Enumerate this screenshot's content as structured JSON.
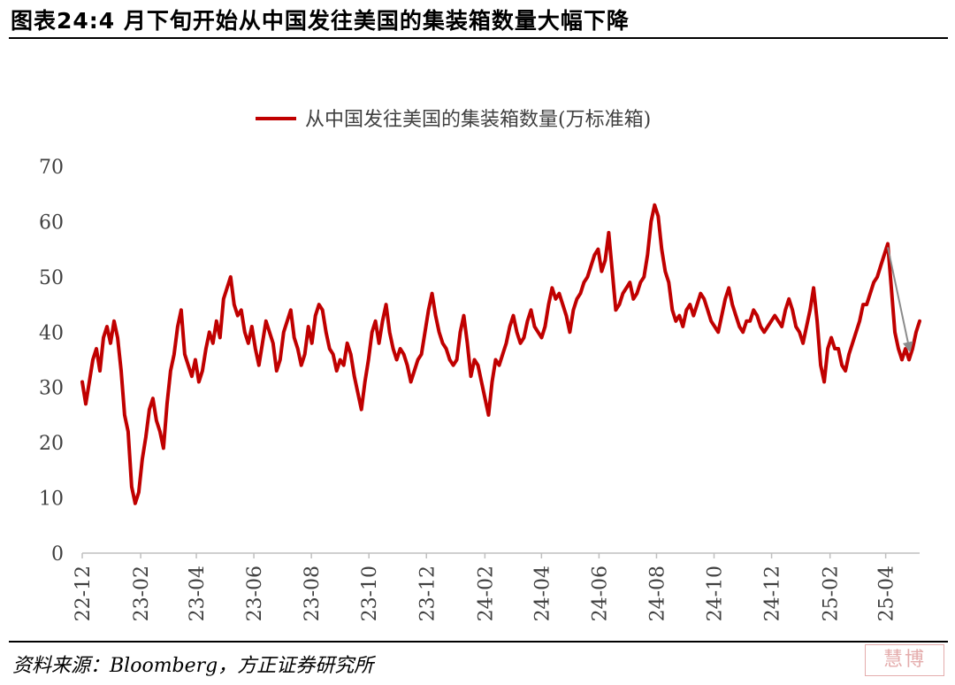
{
  "title": "图表24:4 月下旬开始从中国发往美国的集装箱数量大幅下降",
  "source": "资料来源：Bloomberg，方正证券研究所",
  "colors": {
    "series": "#c00000",
    "arrow": "#8c8c8c",
    "axis": "#bfbfbf"
  },
  "chart_data": {
    "type": "line",
    "legend": "top-center",
    "ylim": [
      0,
      70
    ],
    "yticks": [
      "0",
      "10",
      "20",
      "30",
      "40",
      "50",
      "60",
      "70"
    ],
    "xticks": [
      "22-12",
      "23-02",
      "23-04",
      "23-06",
      "23-08",
      "23-10",
      "23-12",
      "24-02",
      "24-04",
      "24-06",
      "24-08",
      "24-10",
      "24-12",
      "25-02",
      "25-04"
    ],
    "series": [
      {
        "name": "从中国发往美国的集装箱数量(万标准箱)",
        "x_start": "2022-12-01",
        "x_end": "2025-05-07",
        "values": [
          31,
          27,
          31,
          35,
          37,
          33,
          39,
          41,
          38,
          42,
          39,
          33,
          25,
          22,
          12,
          9,
          11,
          17,
          21,
          26,
          28,
          24,
          22,
          19,
          27,
          33,
          36,
          41,
          44,
          36,
          34,
          32,
          35,
          31,
          33,
          37,
          40,
          38,
          42,
          39,
          46,
          48,
          50,
          45,
          43,
          44,
          40,
          38,
          41,
          37,
          34,
          38,
          42,
          40,
          38,
          33,
          35,
          40,
          42,
          44,
          39,
          37,
          34,
          36,
          41,
          38,
          43,
          45,
          44,
          40,
          37,
          36,
          33,
          35,
          34,
          38,
          36,
          32,
          29,
          26,
          31,
          35,
          40,
          42,
          38,
          42,
          45,
          40,
          37,
          35,
          37,
          36,
          34,
          31,
          33,
          35,
          36,
          40,
          44,
          47,
          43,
          40,
          38,
          37,
          35,
          34,
          35,
          40,
          43,
          38,
          32,
          35,
          34,
          31,
          28,
          25,
          31,
          35,
          34,
          36,
          38,
          41,
          43,
          40,
          38,
          39,
          42,
          44,
          41,
          40,
          39,
          41,
          45,
          48,
          46,
          47,
          45,
          43,
          40,
          44,
          46,
          47,
          49,
          50,
          52,
          54,
          55,
          51,
          53,
          58,
          51,
          44,
          45,
          47,
          48,
          49,
          46,
          47,
          49,
          50,
          54,
          60,
          63,
          61,
          55,
          51,
          49,
          44,
          42,
          43,
          41,
          44,
          45,
          43,
          45,
          47,
          46,
          44,
          42,
          41,
          40,
          43,
          46,
          48,
          45,
          43,
          41,
          40,
          42,
          42,
          44,
          43,
          41,
          40,
          41,
          42,
          43,
          42,
          41,
          44,
          46,
          44,
          41,
          40,
          38,
          41,
          44,
          48,
          42,
          34,
          31,
          37,
          39,
          37,
          37,
          34,
          33,
          36,
          38,
          40,
          42,
          45,
          45,
          47,
          49,
          50,
          52,
          54,
          56,
          48,
          40,
          37,
          35,
          37,
          35,
          37,
          40,
          42
        ]
      }
    ],
    "annotation": "arrow"
  }
}
